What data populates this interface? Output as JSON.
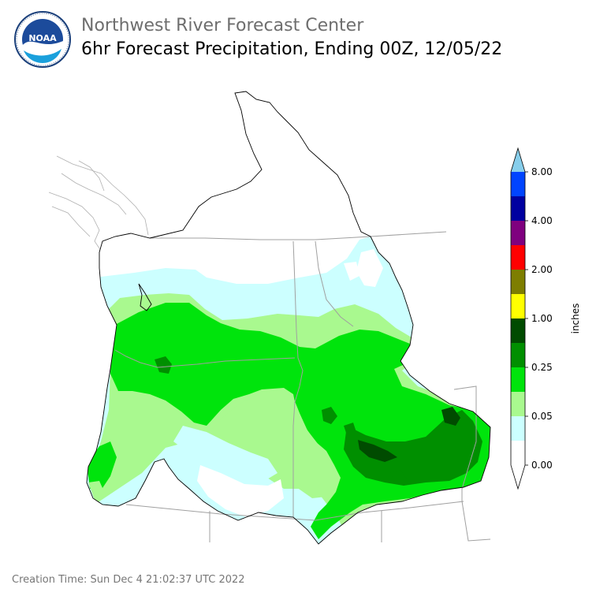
{
  "header": {
    "agency": "Northwest River Forecast Center",
    "product": "6hr Forecast Precipitation, Ending 00Z, 12/05/22",
    "logo": {
      "icon": "noaa-logo-icon",
      "text": "NOAA"
    }
  },
  "legend": {
    "unit": "inches",
    "tick_labels": [
      "0.00",
      "0.05",
      "0.25",
      "1.00",
      "2.00",
      "4.00",
      "8.00"
    ],
    "bins": [
      {
        "color": "#ffffff"
      },
      {
        "color": "#ccffff"
      },
      {
        "color": "#a9f98f"
      },
      {
        "color": "#00e40c"
      },
      {
        "color": "#008f00"
      },
      {
        "color": "#004b00"
      },
      {
        "color": "#ffff00"
      },
      {
        "color": "#7e7e00"
      },
      {
        "color": "#ff0000"
      },
      {
        "color": "#7f007f"
      },
      {
        "color": "#0000a0"
      },
      {
        "color": "#0044ff"
      },
      {
        "color": "#87ceeb"
      }
    ]
  },
  "colors": {
    "white": "#ffffff",
    "light_cyan": "#ccffff",
    "light_green": "#a9f98f",
    "green": "#00e40c",
    "dark_green": "#008f00",
    "darkest_green": "#004b00",
    "outline": "#000000",
    "state_line": "#a0a0a0"
  },
  "footer": {
    "creation_time": "Creation Time: Sun Dec 4 21:02:37 UTC 2022"
  }
}
